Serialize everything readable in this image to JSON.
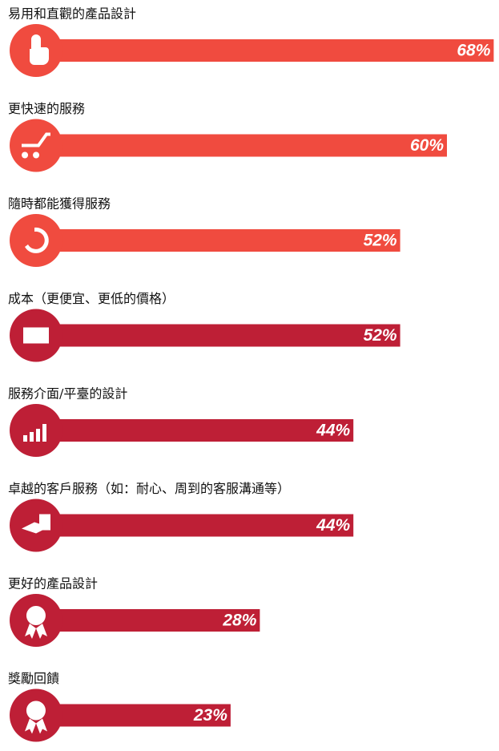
{
  "chart_data": {
    "type": "bar",
    "orientation": "horizontal",
    "categories": [
      "易用和直觀的產品設計",
      "更快速的服務",
      "隨時都能獲得服務",
      "成本（更便宜、更低的價格）",
      "服務介面/平臺的設計",
      "卓越的客戶服務（如：耐心、周到的客服溝通等）",
      "更好的產品設計",
      "獎勵回饋"
    ],
    "values": [
      68,
      60,
      52,
      52,
      44,
      44,
      28,
      23
    ],
    "value_labels": [
      "68%",
      "60%",
      "52%",
      "52%",
      "44%",
      "44%",
      "28%",
      "23%"
    ],
    "colors": [
      "#f04b3f",
      "#f04b3f",
      "#f04b3f",
      "#be1f36",
      "#be1f36",
      "#be1f36",
      "#be1f36",
      "#be1f36"
    ]
  }
}
